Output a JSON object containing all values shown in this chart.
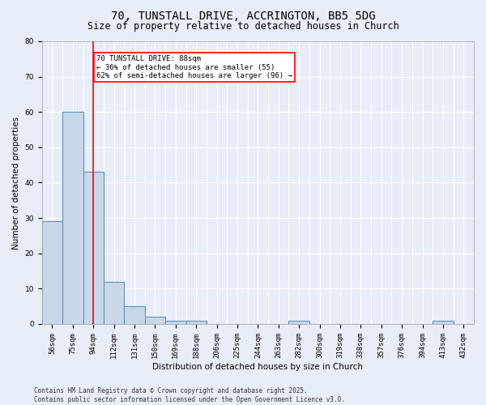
{
  "title": "70, TUNSTALL DRIVE, ACCRINGTON, BB5 5DG",
  "subtitle": "Size of property relative to detached houses in Church",
  "xlabel": "Distribution of detached houses by size in Church",
  "ylabel": "Number of detached properties",
  "categories": [
    "56sqm",
    "75sqm",
    "94sqm",
    "112sqm",
    "131sqm",
    "150sqm",
    "169sqm",
    "188sqm",
    "206sqm",
    "225sqm",
    "244sqm",
    "263sqm",
    "282sqm",
    "300sqm",
    "319sqm",
    "338sqm",
    "357sqm",
    "376sqm",
    "394sqm",
    "413sqm",
    "432sqm"
  ],
  "values": [
    29,
    60,
    43,
    12,
    5,
    2,
    1,
    1,
    0,
    0,
    0,
    0,
    1,
    0,
    0,
    0,
    0,
    0,
    0,
    1,
    0
  ],
  "bar_color": "#c8d8e8",
  "bar_edge_color": "#6090b8",
  "red_line_x": 2.0,
  "annotation_text": "70 TUNSTALL DRIVE: 88sqm\n← 36% of detached houses are smaller (55)\n62% of semi-detached houses are larger (96) →",
  "annotation_box_color": "white",
  "annotation_box_edge": "red",
  "ylim": [
    0,
    80
  ],
  "yticks": [
    0,
    10,
    20,
    30,
    40,
    50,
    60,
    70,
    80
  ],
  "background_color": "#e8eef8",
  "grid_color": "#ffffff",
  "footer": "Contains HM Land Registry data © Crown copyright and database right 2025.\nContains public sector information licensed under the Open Government Licence v3.0.",
  "title_fontsize": 10,
  "subtitle_fontsize": 8.5,
  "label_fontsize": 7.5,
  "tick_fontsize": 6.5,
  "footer_fontsize": 5.5,
  "annot_fontsize": 6.5
}
